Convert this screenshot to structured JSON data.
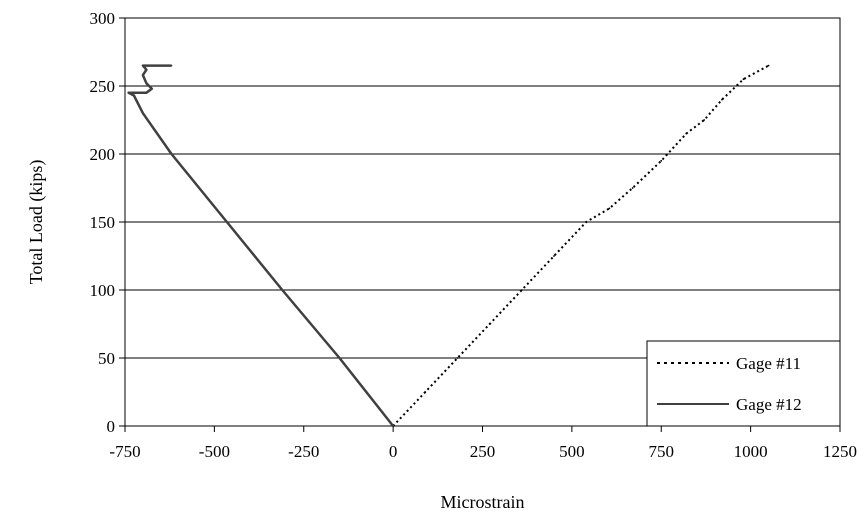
{
  "chart_data": {
    "type": "line",
    "title": "",
    "xlabel": "Microstrain",
    "ylabel": "Total Load (kips)",
    "xlim": [
      -750,
      1250
    ],
    "ylim": [
      0,
      300
    ],
    "x_ticks": [
      "-750",
      "-500",
      "-250",
      "0",
      "250",
      "500",
      "750",
      "1000",
      "1250"
    ],
    "y_ticks": [
      "0",
      "50",
      "100",
      "150",
      "200",
      "250",
      "300"
    ],
    "grid": "horizontal",
    "legend_position": "bottom-right",
    "series": [
      {
        "name": "Gage #11",
        "style": "dotted",
        "color": "#000000",
        "points": [
          [
            0,
            0
          ],
          [
            90,
            25
          ],
          [
            180,
            50
          ],
          [
            270,
            75
          ],
          [
            360,
            100
          ],
          [
            450,
            125
          ],
          [
            540,
            150
          ],
          [
            605,
            160
          ],
          [
            670,
            175
          ],
          [
            750,
            195
          ],
          [
            820,
            215
          ],
          [
            870,
            225
          ],
          [
            920,
            240
          ],
          [
            980,
            255
          ],
          [
            1050,
            265
          ]
        ]
      },
      {
        "name": "Gage #12",
        "style": "solid",
        "color": "#404040",
        "points": [
          [
            0,
            0
          ],
          [
            -150,
            50
          ],
          [
            -310,
            100
          ],
          [
            -465,
            150
          ],
          [
            -620,
            200
          ],
          [
            -700,
            230
          ],
          [
            -725,
            243
          ],
          [
            -740,
            245
          ],
          [
            -690,
            245
          ],
          [
            -675,
            248
          ],
          [
            -690,
            252
          ],
          [
            -700,
            258
          ],
          [
            -690,
            262
          ],
          [
            -700,
            265
          ],
          [
            -620,
            265
          ]
        ]
      }
    ]
  }
}
